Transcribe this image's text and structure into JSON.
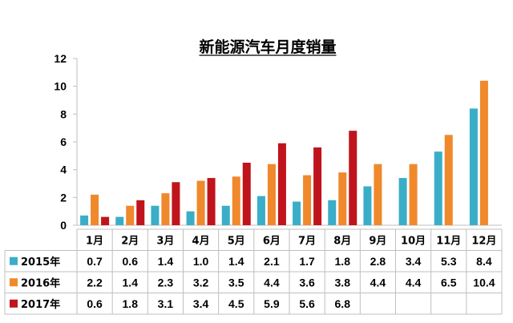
{
  "chart_data": {
    "type": "bar",
    "title": "新能源汽车月度销量",
    "categories": [
      "1月",
      "2月",
      "3月",
      "4月",
      "5月",
      "6月",
      "7月",
      "8月",
      "9月",
      "10月",
      "11月",
      "12月"
    ],
    "series": [
      {
        "name": "2015年",
        "color": "#3aaec8",
        "values": [
          0.7,
          0.6,
          1.4,
          1.0,
          1.4,
          2.1,
          1.7,
          1.8,
          2.8,
          3.4,
          5.3,
          8.4
        ]
      },
      {
        "name": "2016年",
        "color": "#f0882c",
        "values": [
          2.2,
          1.4,
          2.3,
          3.2,
          3.5,
          4.4,
          3.6,
          3.8,
          4.4,
          4.4,
          6.5,
          10.4
        ]
      },
      {
        "name": "2017年",
        "color": "#c0141c",
        "values": [
          0.6,
          1.8,
          3.1,
          3.4,
          4.5,
          5.9,
          5.6,
          6.8,
          null,
          null,
          null,
          null
        ]
      }
    ],
    "table_values": [
      [
        "0.7",
        "0.6",
        "1.4",
        "1.0",
        "1.4",
        "2.1",
        "1.7",
        "1.8",
        "2.8",
        "3.4",
        "5.3",
        "8.4"
      ],
      [
        "2.2",
        "1.4",
        "2.3",
        "3.2",
        "3.5",
        "4.4",
        "3.6",
        "3.8",
        "4.4",
        "4.4",
        "6.5",
        "10.4"
      ],
      [
        "0.6",
        "1.8",
        "3.1",
        "3.4",
        "4.5",
        "5.9",
        "5.6",
        "6.8",
        "",
        "",
        "",
        ""
      ]
    ],
    "ylim": [
      0,
      12
    ],
    "yticks": [
      "0",
      "2",
      "4",
      "6",
      "8",
      "10",
      "12"
    ],
    "legend": "table-bottom",
    "grid": false
  }
}
